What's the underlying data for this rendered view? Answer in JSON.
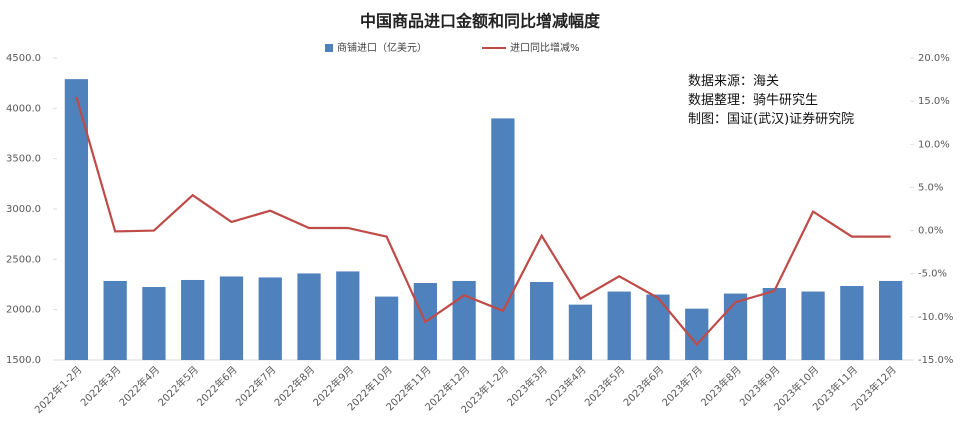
{
  "chart_data": {
    "type": "combo",
    "title": "中国商品进口金额和同比增减幅度",
    "annotations": [
      "数据来源：海关",
      "数据整理：骑牛研究生",
      "制图：国证(武汉)证券研究院"
    ],
    "legend": "top",
    "categories": [
      "2022年1-2月",
      "2022年3月",
      "2022年4月",
      "2022年5月",
      "2022年6月",
      "2022年7月",
      "2022年8月",
      "2022年9月",
      "2022年10月",
      "2022年11月",
      "2022年12月",
      "2023年1-2月",
      "2023年3月",
      "2023年4月",
      "2023年5月",
      "2023年6月",
      "2023年7月",
      "2023年8月",
      "2023年9月",
      "2023年10月",
      "2023年11月",
      "2023年12月"
    ],
    "series": [
      {
        "name": "商铺进口（亿美元）",
        "type": "bar",
        "color": "#4f81bd",
        "axis": "y",
        "values": [
          4290,
          2285,
          2225,
          2295,
          2330,
          2320,
          2360,
          2380,
          2130,
          2265,
          2285,
          3900,
          2275,
          2050,
          2180,
          2150,
          2010,
          2160,
          2215,
          2180,
          2235,
          2285
        ]
      },
      {
        "name": "进口同比增减%",
        "type": "line",
        "color": "#be4b48",
        "axis": "y2",
        "values": [
          15.5,
          -0.1,
          0.0,
          4.1,
          1.0,
          2.3,
          0.3,
          0.3,
          -0.7,
          -10.6,
          -7.5,
          -9.3,
          -0.6,
          -7.9,
          -5.3,
          -7.8,
          -13.2,
          -8.3,
          -7.0,
          2.2,
          -0.7,
          -0.7
        ]
      }
    ],
    "ylim": [
      1500,
      4500
    ],
    "yticks": [
      {
        "value": 1500,
        "label": "1500.0"
      },
      {
        "value": 2000,
        "label": "2000.0"
      },
      {
        "value": 2500,
        "label": "2500.0"
      },
      {
        "value": 3000,
        "label": "3000.0"
      },
      {
        "value": 3500,
        "label": "3500.0"
      },
      {
        "value": 4000,
        "label": "4000.0"
      },
      {
        "value": 4500,
        "label": "4500.0"
      }
    ],
    "y2lim": [
      -15,
      20
    ],
    "y2ticks": [
      {
        "value": -15,
        "label": "-15.0%"
      },
      {
        "value": -10,
        "label": "-10.0%"
      },
      {
        "value": -5,
        "label": "-5.0%"
      },
      {
        "value": 0,
        "label": "0.0%"
      },
      {
        "value": 5,
        "label": "5.0%"
      },
      {
        "value": 10,
        "label": "10.0%"
      },
      {
        "value": 15,
        "label": "15.0%"
      },
      {
        "value": 20,
        "label": "20.0%"
      }
    ]
  }
}
